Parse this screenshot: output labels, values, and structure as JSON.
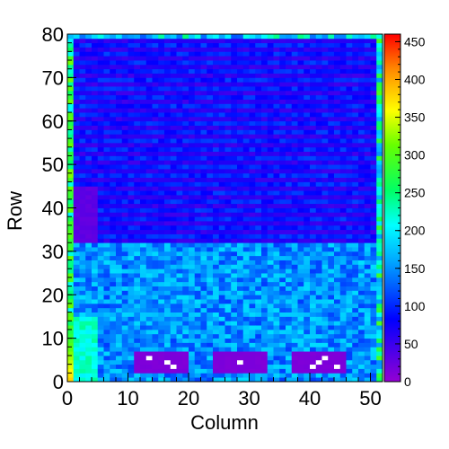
{
  "chart_data": {
    "type": "heatmap",
    "xlabel": "Column",
    "ylabel": "Row",
    "x_range": [
      0,
      52
    ],
    "y_range": [
      0,
      80
    ],
    "x_ticks": [
      0,
      10,
      20,
      30,
      40,
      50
    ],
    "y_ticks": [
      0,
      10,
      20,
      30,
      40,
      50,
      60,
      70,
      80
    ],
    "color_scale": {
      "range": [
        0,
        460
      ],
      "ticks": [
        0,
        50,
        100,
        150,
        200,
        250,
        300,
        350,
        400,
        450
      ],
      "palette": [
        "#ffffff",
        "#9400d3",
        "#0000ff",
        "#00ffff",
        "#00ff00",
        "#ffff00",
        "#ff0000"
      ]
    },
    "grid": false,
    "legend": "colorbar-right",
    "bins": {
      "columns": 52,
      "rows": 80
    },
    "description_regions": [
      {
        "columns": [
          0,
          52
        ],
        "rows": [
          32,
          80
        ],
        "value_range": [
          40,
          110
        ]
      },
      {
        "columns": [
          0,
          52
        ],
        "rows": [
          0,
          32
        ],
        "value_range": [
          90,
          200
        ]
      },
      {
        "columns": [
          1,
          5
        ],
        "rows": [
          0,
          15
        ],
        "value_range": [
          200,
          240
        ]
      },
      {
        "columns": [
          11,
          20
        ],
        "rows": [
          2,
          7
        ],
        "value_range": [
          10,
          15
        ]
      },
      {
        "columns": [
          24,
          33
        ],
        "rows": [
          2,
          7
        ],
        "value_range": [
          10,
          15
        ]
      },
      {
        "columns": [
          37,
          46
        ],
        "rows": [
          2,
          7
        ],
        "value_range": [
          10,
          15
        ]
      },
      {
        "columns": [
          1,
          5
        ],
        "rows": [
          32,
          45
        ],
        "value_range": [
          25,
          35
        ]
      }
    ]
  }
}
